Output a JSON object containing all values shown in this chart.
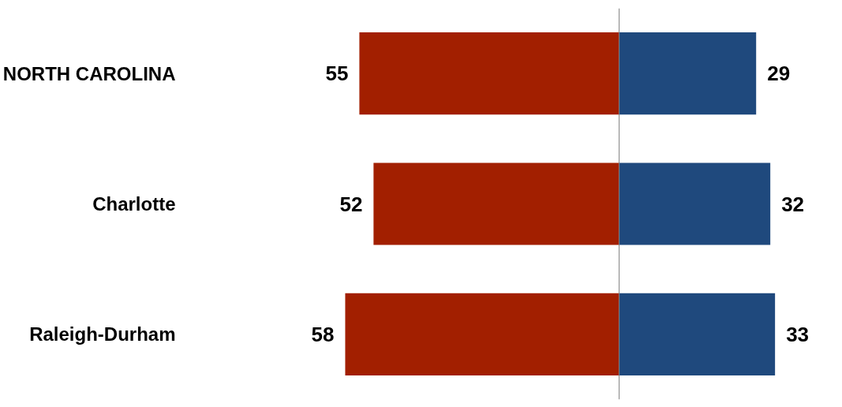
{
  "chart_data": {
    "type": "bar",
    "orientation": "horizontal",
    "categories": [
      "NORTH CAROLINA",
      "Charlotte",
      "Raleigh-Durham"
    ],
    "series": [
      {
        "color": "#a21f00",
        "values": [
          -55,
          -52,
          -58
        ]
      },
      {
        "color": "#1f497d",
        "values": [
          29,
          32,
          33
        ],
        "value_labels": [
          "29",
          "32",
          "33"
        ]
      }
    ],
    "annotations": [
      {
        "text": "55",
        "x": -55,
        "y": "NORTH CAROLINA"
      },
      {
        "text": "52",
        "x": -52,
        "y": "Charlotte"
      },
      {
        "text": "58",
        "x": -58,
        "y": "Raleigh-Durham"
      }
    ],
    "stacked": true,
    "tick_labels": "y"
  }
}
